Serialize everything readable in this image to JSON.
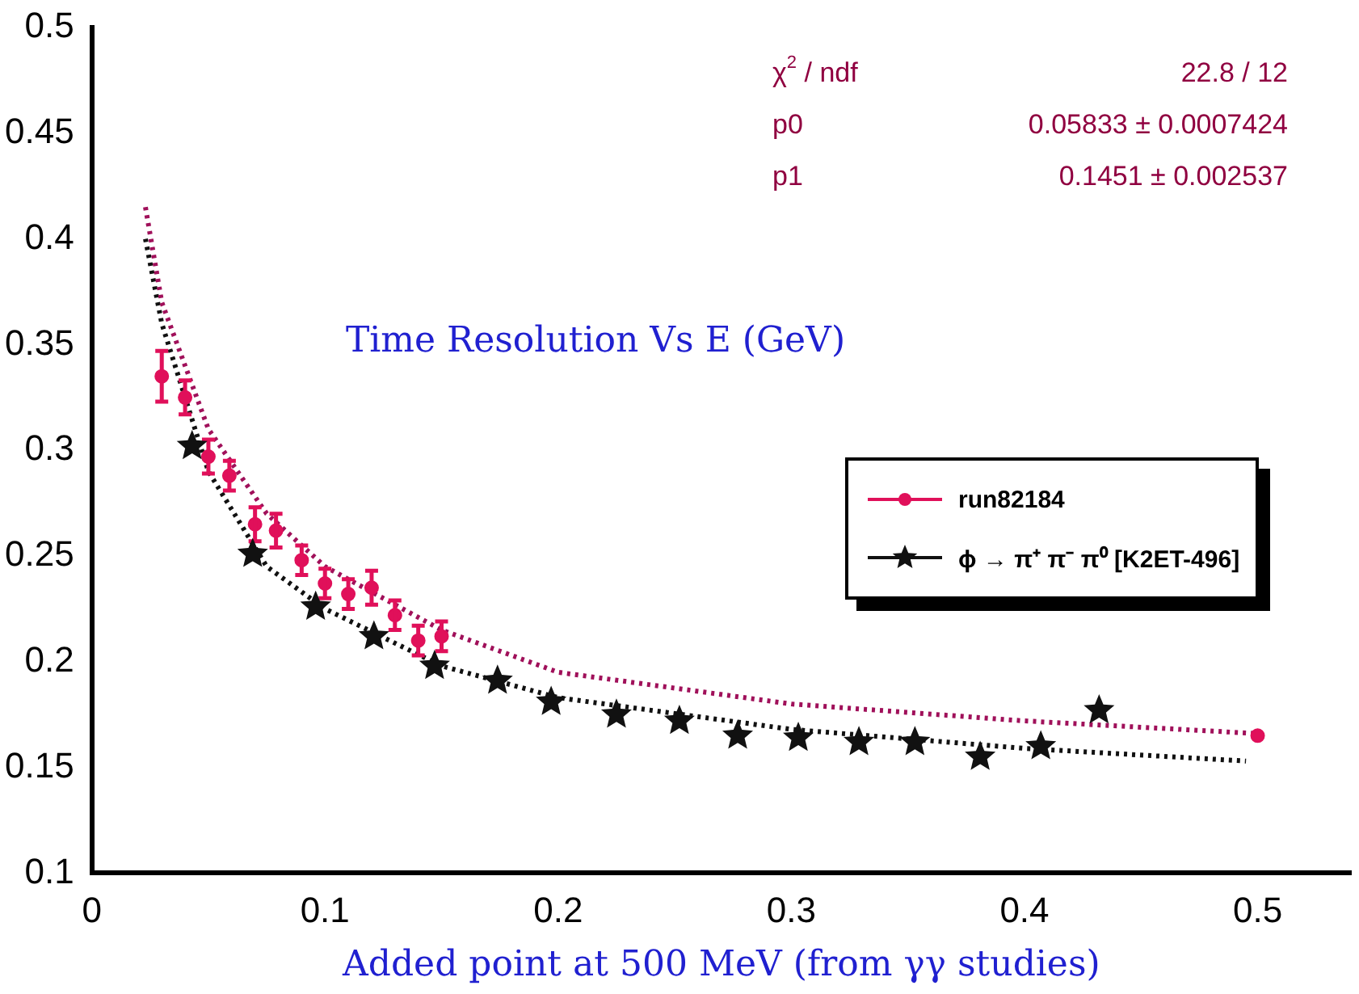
{
  "chart_data": {
    "type": "scatter",
    "title": "Time Resolution Vs E (GeV)",
    "xlabel": "Added point at 500 MeV (from γγ studies)",
    "annotations": [
      "χ$^{2}$ / ndf",
      "22.8 / 12",
      "p0",
      "0.05833 ± 0.0007424",
      "p1",
      "0.1451 ± 0.002537"
    ],
    "xlim": [
      0,
      0.54
    ],
    "xticks": [
      0,
      0.1,
      0.2,
      0.3,
      0.4,
      0.5
    ],
    "ylim": [
      0.1,
      0.5
    ],
    "yticks": [
      0.1,
      0.15,
      0.2,
      0.25,
      0.3,
      0.35,
      0.4,
      0.45,
      0.5
    ],
    "grid": false,
    "legend": "right",
    "series": [
      {
        "name": "run82184",
        "color": "#e0105a",
        "marker": "circle",
        "x": [
          0.03,
          0.04,
          0.05,
          0.059,
          0.07,
          0.079,
          0.09,
          0.1,
          0.11,
          0.12,
          0.13,
          0.14,
          0.15,
          0.5
        ],
        "values": [
          0.335,
          0.325,
          0.297,
          0.288,
          0.265,
          0.262,
          0.248,
          0.237,
          0.232,
          0.235,
          0.222,
          0.21,
          0.212,
          0.165
        ],
        "errors": [
          0.012,
          0.008,
          0.008,
          0.007,
          0.008,
          0.008,
          0.007,
          0.007,
          0.007,
          0.008,
          0.007,
          0.007,
          0.007,
          null
        ]
      },
      {
        "name": "ϕ → π⁺ π⁻ π⁰ [K2ET-496]",
        "color": "#111111",
        "marker": "star",
        "x": [
          0.043,
          0.069,
          0.096,
          0.121,
          0.147,
          0.174,
          0.197,
          0.225,
          0.252,
          0.277,
          0.303,
          0.329,
          0.353,
          0.381,
          0.407,
          0.432
        ],
        "values": [
          0.302,
          0.251,
          0.226,
          0.212,
          0.198,
          0.191,
          0.181,
          0.175,
          0.172,
          0.165,
          0.164,
          0.162,
          0.162,
          0.155,
          0.16,
          0.177
        ]
      },
      {
        "type": "line",
        "color": "#a0105a",
        "line_style": "dotted",
        "marker": "none",
        "x": [
          0.023,
          0.03,
          0.05,
          0.075,
          0.1,
          0.15,
          0.2,
          0.3,
          0.4,
          0.5
        ],
        "values": [
          0.415,
          0.37,
          0.31,
          0.27,
          0.245,
          0.215,
          0.195,
          0.18,
          0.172,
          0.166
        ]
      },
      {
        "type": "line",
        "color": "#111111",
        "line_style": "dotted",
        "marker": "none",
        "x": [
          0.023,
          0.03,
          0.05,
          0.075,
          0.1,
          0.15,
          0.2,
          0.3,
          0.4,
          0.495
        ],
        "values": [
          0.4,
          0.36,
          0.29,
          0.245,
          0.225,
          0.198,
          0.183,
          0.168,
          0.159,
          0.153
        ]
      }
    ]
  }
}
